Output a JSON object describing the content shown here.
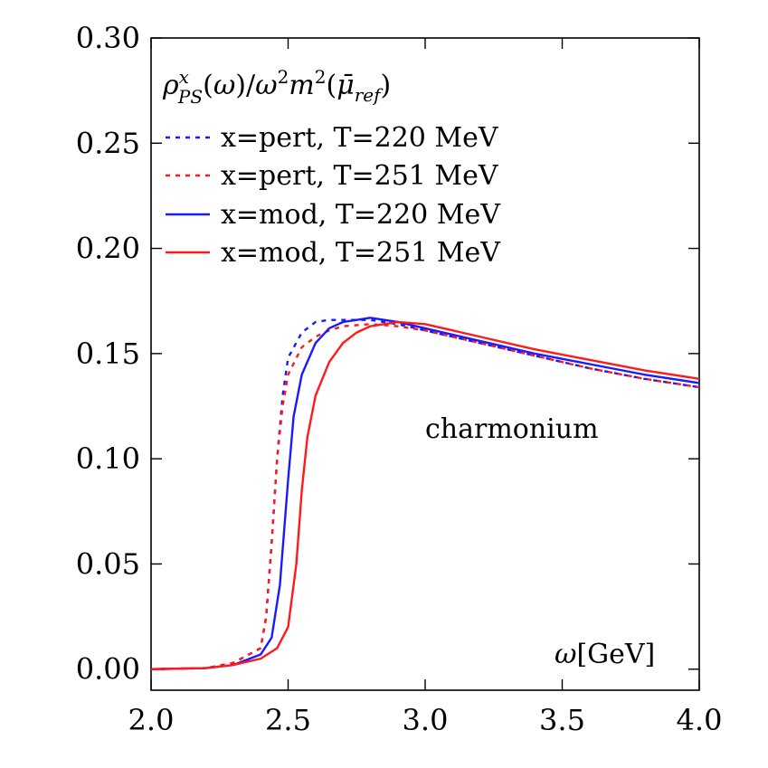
{
  "chart_data": {
    "type": "line",
    "title": "",
    "xlabel": "ω[GeV]",
    "ylabel": "",
    "xlim": [
      2.0,
      4.0
    ],
    "ylim": [
      -0.01,
      0.3
    ],
    "x_ticks": [
      "2.0",
      "2.5",
      "3.0",
      "3.5",
      "4.0"
    ],
    "y_ticks": [
      "0.00",
      "0.05",
      "0.10",
      "0.15",
      "0.20",
      "0.25",
      "0.30"
    ],
    "legend_title": "ρ^x_PS(ω)/ω²m²(μ̄_ref)",
    "legend_placement": "top-left",
    "annotation": "charmonium",
    "grid": false,
    "series": [
      {
        "name": "x=pert, T=220 MeV",
        "color": "#1a1aff",
        "style": "dotted",
        "x": [
          2.0,
          2.2,
          2.3,
          2.4,
          2.42,
          2.44,
          2.46,
          2.48,
          2.5,
          2.55,
          2.6,
          2.65,
          2.7,
          2.8,
          2.9,
          3.0,
          3.2,
          3.4,
          3.6,
          3.8,
          4.0
        ],
        "y": [
          0.0,
          0.0005,
          0.003,
          0.01,
          0.025,
          0.06,
          0.1,
          0.13,
          0.148,
          0.16,
          0.165,
          0.166,
          0.166,
          0.166,
          0.164,
          0.161,
          0.155,
          0.149,
          0.143,
          0.138,
          0.134
        ]
      },
      {
        "name": "x=pert, T=251 MeV",
        "color": "#ff1a1a",
        "style": "dotted",
        "x": [
          2.0,
          2.2,
          2.3,
          2.4,
          2.42,
          2.44,
          2.46,
          2.48,
          2.5,
          2.55,
          2.6,
          2.65,
          2.7,
          2.8,
          2.9,
          3.0,
          3.2,
          3.4,
          3.6,
          3.8,
          4.0
        ],
        "y": [
          0.0,
          0.0005,
          0.003,
          0.01,
          0.025,
          0.06,
          0.1,
          0.125,
          0.14,
          0.153,
          0.158,
          0.161,
          0.163,
          0.164,
          0.163,
          0.161,
          0.155,
          0.149,
          0.143,
          0.138,
          0.134
        ]
      },
      {
        "name": "x=mod, T=220 MeV",
        "color": "#1a1aff",
        "style": "solid",
        "x": [
          2.0,
          2.2,
          2.3,
          2.4,
          2.44,
          2.47,
          2.5,
          2.52,
          2.55,
          2.6,
          2.65,
          2.7,
          2.75,
          2.8,
          2.9,
          3.0,
          3.2,
          3.4,
          3.6,
          3.8,
          4.0
        ],
        "y": [
          0.0,
          0.0005,
          0.002,
          0.007,
          0.015,
          0.04,
          0.09,
          0.12,
          0.14,
          0.155,
          0.162,
          0.165,
          0.166,
          0.167,
          0.165,
          0.162,
          0.156,
          0.15,
          0.145,
          0.14,
          0.136
        ]
      },
      {
        "name": "x=mod, T=251 MeV",
        "color": "#ff1a1a",
        "style": "solid",
        "x": [
          2.0,
          2.2,
          2.3,
          2.4,
          2.46,
          2.5,
          2.53,
          2.55,
          2.57,
          2.6,
          2.65,
          2.7,
          2.75,
          2.8,
          2.9,
          3.0,
          3.2,
          3.4,
          3.6,
          3.8,
          4.0
        ],
        "y": [
          0.0,
          0.0005,
          0.002,
          0.005,
          0.01,
          0.02,
          0.05,
          0.085,
          0.11,
          0.13,
          0.146,
          0.155,
          0.16,
          0.163,
          0.165,
          0.164,
          0.158,
          0.152,
          0.147,
          0.142,
          0.138
        ]
      }
    ]
  }
}
